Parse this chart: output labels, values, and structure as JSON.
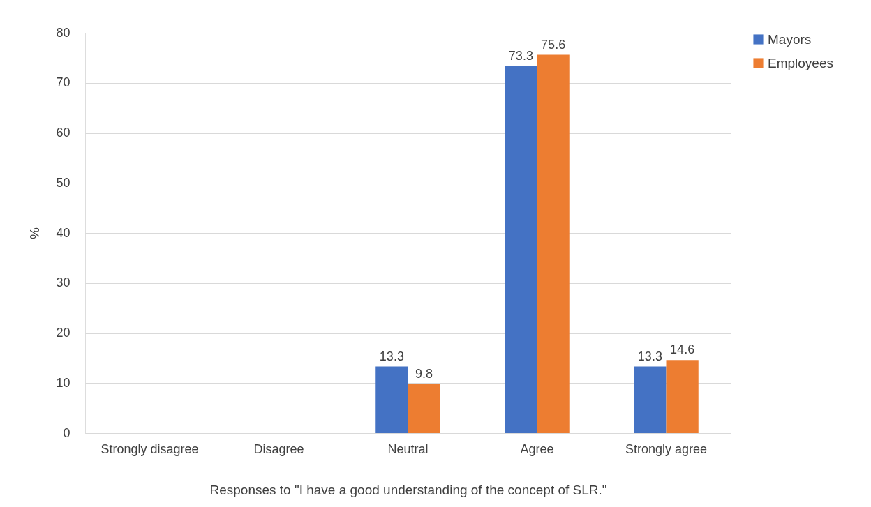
{
  "chart_data": {
    "type": "bar",
    "xlabel": "Responses to \"I have a good understanding of the concept of SLR.\"",
    "ylabel": "%",
    "categories": [
      "Strongly disagree",
      "Disagree",
      "Neutral",
      "Agree",
      "Strongly agree"
    ],
    "series": [
      {
        "name": "Mayors",
        "color": "#4472c4",
        "values": [
          null,
          null,
          13.3,
          73.3,
          13.3
        ]
      },
      {
        "name": "Employees",
        "color": "#ed7d31",
        "values": [
          null,
          null,
          9.8,
          75.6,
          14.6
        ]
      }
    ],
    "ylim": [
      0,
      80
    ],
    "yticks": [
      0,
      10,
      20,
      30,
      40,
      50,
      60,
      70,
      80
    ],
    "grid": "y",
    "legend": "right",
    "data_labels": true
  }
}
